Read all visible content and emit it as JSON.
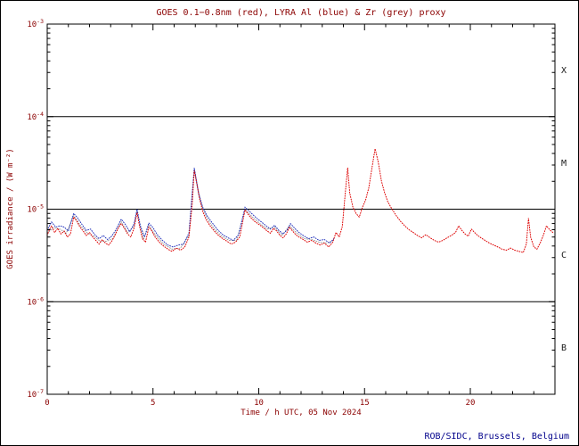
{
  "footer": {
    "credit": "ROB/SIDC, Brussels, Belgium"
  },
  "colors": {
    "axis": "#000000",
    "text": "#8b0000",
    "credit": "#00008b"
  },
  "chart_data": {
    "type": "scatter",
    "title": "GOES 0.1−0.8nm (red), LYRA Al (blue) & Zr (grey) proxy",
    "xlabel": "Time / h UTC, 05 Nov 2024",
    "ylabel": "GOES irradiance / (W m⁻²)",
    "xlim": [
      0,
      24
    ],
    "x_major_ticks": [
      0,
      5,
      10,
      15,
      20
    ],
    "x_minor_step": 1,
    "y_scale": "log",
    "ylim_exp": [
      -7,
      -3
    ],
    "y_major_exps": [
      -3,
      -4,
      -5,
      -6,
      -7
    ],
    "hlines_exp": [
      -4,
      -5,
      -6
    ],
    "grid": "flare-class-boundaries",
    "legend": "none (colors named in title)",
    "class_bands": [
      {
        "label": "X",
        "center_exp": -3.5
      },
      {
        "label": "M",
        "center_exp": -4.5
      },
      {
        "label": "C",
        "center_exp": -5.5
      },
      {
        "label": "B",
        "center_exp": -6.5
      }
    ],
    "series": [
      {
        "name": "LYRA Zr proxy",
        "color": "#9a9a9a",
        "points": [
          [
            0.0,
            5.5e-06
          ],
          [
            0.3,
            6.3e-06
          ],
          [
            0.6,
            6.1e-06
          ],
          [
            0.9,
            5.5e-06
          ],
          [
            1.25,
            8.5e-06
          ],
          [
            1.6,
            6.5e-06
          ],
          [
            1.9,
            5.5e-06
          ],
          [
            2.2,
            5.1e-06
          ],
          [
            2.5,
            4.5e-06
          ],
          [
            2.8,
            4.5e-06
          ],
          [
            3.1,
            4.8e-06
          ],
          [
            3.5,
            7.3e-06
          ],
          [
            3.8,
            5.6e-06
          ],
          [
            4.1,
            6.5e-06
          ],
          [
            4.25,
            9.6e-06
          ],
          [
            4.55,
            4.7e-06
          ],
          [
            4.8,
            6.7e-06
          ],
          [
            5.1,
            5.3e-06
          ],
          [
            5.5,
            4.2e-06
          ],
          [
            5.9,
            3.7e-06
          ],
          [
            6.3,
            3.8e-06
          ],
          [
            6.7,
            5.2e-06
          ],
          [
            6.95,
            2.7e-05
          ],
          [
            7.25,
            1.2e-05
          ],
          [
            7.55,
            8e-06
          ],
          [
            7.9,
            6.1e-06
          ],
          [
            8.25,
            5.1e-06
          ],
          [
            8.6,
            4.6e-06
          ],
          [
            8.95,
            4.6e-06
          ],
          [
            9.35,
            1e-05
          ],
          [
            9.7,
            8.2e-06
          ],
          [
            10.05,
            7e-06
          ],
          [
            10.4,
            6.1e-06
          ],
          [
            10.75,
            6.4e-06
          ],
          [
            11.1,
            5.2e-06
          ],
          [
            11.45,
            6.6e-06
          ],
          [
            11.8,
            5.5e-06
          ],
          [
            12.15,
            4.8e-06
          ],
          [
            12.5,
            4.7e-06
          ],
          [
            12.85,
            4.4e-06
          ],
          [
            13.2,
            4.3e-06
          ],
          [
            13.55,
            4.6e-06
          ]
        ]
      },
      {
        "name": "LYRA Al proxy",
        "color": "#2233bb",
        "points": [
          [
            0.0,
            5.9e-06
          ],
          [
            0.2,
            7.3e-06
          ],
          [
            0.4,
            6.4e-06
          ],
          [
            0.6,
            6.6e-06
          ],
          [
            0.8,
            6.4e-06
          ],
          [
            1.0,
            5.8e-06
          ],
          [
            1.25,
            9e-06
          ],
          [
            1.45,
            8e-06
          ],
          [
            1.65,
            6.8e-06
          ],
          [
            1.85,
            5.9e-06
          ],
          [
            2.05,
            6.1e-06
          ],
          [
            2.25,
            5.3e-06
          ],
          [
            2.45,
            4.8e-06
          ],
          [
            2.65,
            5.2e-06
          ],
          [
            2.85,
            4.7e-06
          ],
          [
            3.05,
            5.1e-06
          ],
          [
            3.25,
            6e-06
          ],
          [
            3.5,
            7.8e-06
          ],
          [
            3.7,
            6.8e-06
          ],
          [
            3.9,
            5.7e-06
          ],
          [
            4.1,
            6.9e-06
          ],
          [
            4.25,
            1e-05
          ],
          [
            4.4,
            6.6e-06
          ],
          [
            4.6,
            5e-06
          ],
          [
            4.8,
            7.1e-06
          ],
          [
            5.0,
            6.3e-06
          ],
          [
            5.2,
            5.3e-06
          ],
          [
            5.45,
            4.6e-06
          ],
          [
            5.7,
            4.1e-06
          ],
          [
            5.95,
            3.9e-06
          ],
          [
            6.2,
            4.1e-06
          ],
          [
            6.45,
            4.2e-06
          ],
          [
            6.7,
            5.5e-06
          ],
          [
            6.95,
            2.8e-05
          ],
          [
            7.15,
            1.5e-05
          ],
          [
            7.35,
            1.05e-05
          ],
          [
            7.55,
            8.5e-06
          ],
          [
            7.8,
            7.1e-06
          ],
          [
            8.05,
            6e-06
          ],
          [
            8.3,
            5.3e-06
          ],
          [
            8.55,
            4.9e-06
          ],
          [
            8.8,
            4.6e-06
          ],
          [
            9.05,
            5.3e-06
          ],
          [
            9.35,
            1.05e-05
          ],
          [
            9.55,
            9.5e-06
          ],
          [
            9.75,
            8.6e-06
          ],
          [
            9.95,
            7.8e-06
          ],
          [
            10.15,
            7.2e-06
          ],
          [
            10.35,
            6.6e-06
          ],
          [
            10.55,
            6.1e-06
          ],
          [
            10.75,
            6.7e-06
          ],
          [
            10.95,
            5.9e-06
          ],
          [
            11.15,
            5.4e-06
          ],
          [
            11.35,
            6e-06
          ],
          [
            11.5,
            7e-06
          ],
          [
            11.7,
            6.2e-06
          ],
          [
            11.9,
            5.6e-06
          ],
          [
            12.1,
            5.2e-06
          ],
          [
            12.35,
            4.8e-06
          ],
          [
            12.6,
            5e-06
          ],
          [
            12.85,
            4.6e-06
          ],
          [
            13.1,
            4.7e-06
          ],
          [
            13.35,
            4.3e-06
          ],
          [
            13.55,
            4.8e-06
          ]
        ]
      },
      {
        "name": "GOES 0.1-0.8nm",
        "color": "#dd0000",
        "points": [
          [
            0.0,
            5.2e-06
          ],
          [
            0.1,
            6e-06
          ],
          [
            0.2,
            6.6e-06
          ],
          [
            0.35,
            5.6e-06
          ],
          [
            0.5,
            6.2e-06
          ],
          [
            0.65,
            5.4e-06
          ],
          [
            0.8,
            5.8e-06
          ],
          [
            0.95,
            5e-06
          ],
          [
            1.1,
            5.4e-06
          ],
          [
            1.25,
            8.2e-06
          ],
          [
            1.4,
            7.4e-06
          ],
          [
            1.55,
            6.4e-06
          ],
          [
            1.7,
            5.8e-06
          ],
          [
            1.85,
            5.2e-06
          ],
          [
            2.0,
            5.6e-06
          ],
          [
            2.15,
            5e-06
          ],
          [
            2.3,
            4.6e-06
          ],
          [
            2.45,
            4.2e-06
          ],
          [
            2.6,
            4.7e-06
          ],
          [
            2.75,
            4.3e-06
          ],
          [
            2.9,
            4.1e-06
          ],
          [
            3.05,
            4.5e-06
          ],
          [
            3.2,
            5.2e-06
          ],
          [
            3.35,
            6.2e-06
          ],
          [
            3.5,
            7e-06
          ],
          [
            3.65,
            6.2e-06
          ],
          [
            3.8,
            5.4e-06
          ],
          [
            3.95,
            5e-06
          ],
          [
            4.1,
            6.2e-06
          ],
          [
            4.25,
            9.2e-06
          ],
          [
            4.35,
            6.8e-06
          ],
          [
            4.5,
            4.8e-06
          ],
          [
            4.65,
            4.4e-06
          ],
          [
            4.8,
            6.4e-06
          ],
          [
            4.95,
            5.8e-06
          ],
          [
            5.1,
            5e-06
          ],
          [
            5.3,
            4.4e-06
          ],
          [
            5.5,
            4e-06
          ],
          [
            5.7,
            3.7e-06
          ],
          [
            5.9,
            3.5e-06
          ],
          [
            6.1,
            3.8e-06
          ],
          [
            6.3,
            3.6e-06
          ],
          [
            6.5,
            3.9e-06
          ],
          [
            6.7,
            5e-06
          ],
          [
            6.85,
            1.1e-05
          ],
          [
            6.95,
            2.6e-05
          ],
          [
            7.05,
            2e-05
          ],
          [
            7.2,
            1.3e-05
          ],
          [
            7.35,
            9.5e-06
          ],
          [
            7.5,
            7.8e-06
          ],
          [
            7.7,
            6.6e-06
          ],
          [
            7.9,
            5.8e-06
          ],
          [
            8.1,
            5.2e-06
          ],
          [
            8.3,
            4.8e-06
          ],
          [
            8.5,
            4.5e-06
          ],
          [
            8.7,
            4.2e-06
          ],
          [
            8.9,
            4.4e-06
          ],
          [
            9.1,
            5e-06
          ],
          [
            9.25,
            7.5e-06
          ],
          [
            9.35,
            9.8e-06
          ],
          [
            9.5,
            8.8e-06
          ],
          [
            9.65,
            8e-06
          ],
          [
            9.8,
            7.4e-06
          ],
          [
            9.95,
            7e-06
          ],
          [
            10.1,
            6.6e-06
          ],
          [
            10.25,
            6.2e-06
          ],
          [
            10.4,
            5.8e-06
          ],
          [
            10.55,
            5.5e-06
          ],
          [
            10.7,
            6.2e-06
          ],
          [
            10.85,
            5.8e-06
          ],
          [
            11.0,
            5.2e-06
          ],
          [
            11.15,
            4.9e-06
          ],
          [
            11.3,
            5.4e-06
          ],
          [
            11.45,
            6.4e-06
          ],
          [
            11.6,
            5.8e-06
          ],
          [
            11.75,
            5.3e-06
          ],
          [
            11.9,
            5e-06
          ],
          [
            12.1,
            4.7e-06
          ],
          [
            12.3,
            4.4e-06
          ],
          [
            12.5,
            4.6e-06
          ],
          [
            12.7,
            4.3e-06
          ],
          [
            12.9,
            4.1e-06
          ],
          [
            13.1,
            4.3e-06
          ],
          [
            13.3,
            3.9e-06
          ],
          [
            13.5,
            4.4e-06
          ],
          [
            13.65,
            5.6e-06
          ],
          [
            13.8,
            5e-06
          ],
          [
            13.95,
            6.5e-06
          ],
          [
            14.1,
            1.6e-05
          ],
          [
            14.2,
            2.8e-05
          ],
          [
            14.3,
            1.5e-05
          ],
          [
            14.45,
            1.05e-05
          ],
          [
            14.6,
            9e-06
          ],
          [
            14.75,
            8.2e-06
          ],
          [
            14.9,
            1.05e-05
          ],
          [
            15.05,
            1.25e-05
          ],
          [
            15.2,
            1.7e-05
          ],
          [
            15.35,
            2.8e-05
          ],
          [
            15.5,
            4.5e-05
          ],
          [
            15.65,
            3.2e-05
          ],
          [
            15.8,
            2e-05
          ],
          [
            15.95,
            1.5e-05
          ],
          [
            16.1,
            1.2e-05
          ],
          [
            16.3,
            1e-05
          ],
          [
            16.5,
            8.5e-06
          ],
          [
            16.7,
            7.4e-06
          ],
          [
            16.9,
            6.6e-06
          ],
          [
            17.1,
            6e-06
          ],
          [
            17.3,
            5.6e-06
          ],
          [
            17.5,
            5.2e-06
          ],
          [
            17.7,
            4.9e-06
          ],
          [
            17.9,
            5.3e-06
          ],
          [
            18.1,
            4.9e-06
          ],
          [
            18.3,
            4.6e-06
          ],
          [
            18.5,
            4.4e-06
          ],
          [
            18.7,
            4.6e-06
          ],
          [
            18.9,
            4.9e-06
          ],
          [
            19.1,
            5.2e-06
          ],
          [
            19.3,
            5.6e-06
          ],
          [
            19.45,
            6.6e-06
          ],
          [
            19.6,
            5.9e-06
          ],
          [
            19.75,
            5.4e-06
          ],
          [
            19.9,
            5.1e-06
          ],
          [
            20.05,
            6.1e-06
          ],
          [
            20.2,
            5.6e-06
          ],
          [
            20.35,
            5.2e-06
          ],
          [
            20.5,
            4.9e-06
          ],
          [
            20.7,
            4.6e-06
          ],
          [
            20.9,
            4.3e-06
          ],
          [
            21.1,
            4.1e-06
          ],
          [
            21.3,
            3.9e-06
          ],
          [
            21.5,
            3.7e-06
          ],
          [
            21.7,
            3.6e-06
          ],
          [
            21.9,
            3.8e-06
          ],
          [
            22.1,
            3.6e-06
          ],
          [
            22.3,
            3.5e-06
          ],
          [
            22.5,
            3.4e-06
          ],
          [
            22.65,
            4.2e-06
          ],
          [
            22.75,
            8e-06
          ],
          [
            22.85,
            5e-06
          ],
          [
            23.0,
            3.9e-06
          ],
          [
            23.15,
            3.7e-06
          ],
          [
            23.3,
            4.3e-06
          ],
          [
            23.45,
            5.2e-06
          ],
          [
            23.6,
            6.6e-06
          ],
          [
            23.75,
            6e-06
          ],
          [
            23.9,
            5.6e-06
          ]
        ]
      }
    ]
  }
}
